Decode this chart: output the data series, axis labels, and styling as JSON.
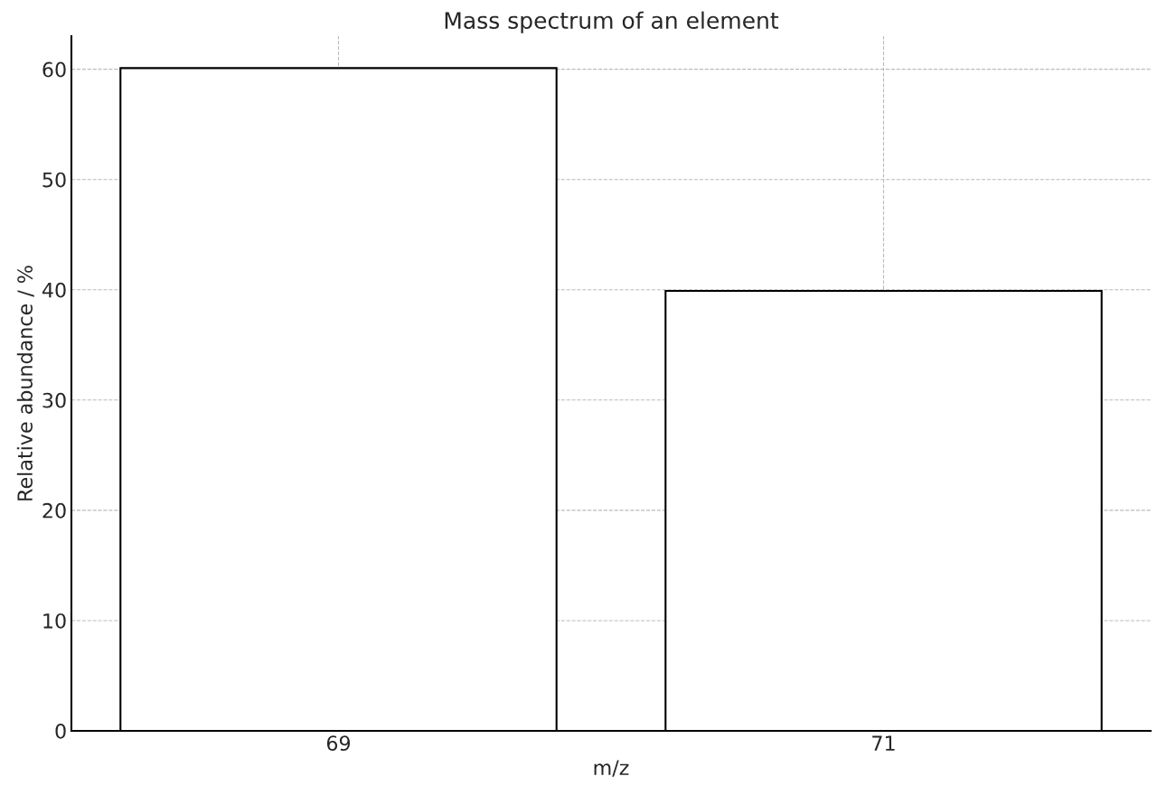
{
  "chart_data": {
    "type": "bar",
    "title": "Mass spectrum of an element",
    "xlabel": "m/z",
    "ylabel": "Relative abundance / %",
    "categories": [
      "69",
      "71"
    ],
    "values": [
      60.1,
      39.9
    ],
    "color": "#ffffff",
    "ylim": [
      0,
      63
    ],
    "yticks": [
      0,
      10,
      20,
      30,
      40,
      50,
      60
    ],
    "grid": true
  }
}
